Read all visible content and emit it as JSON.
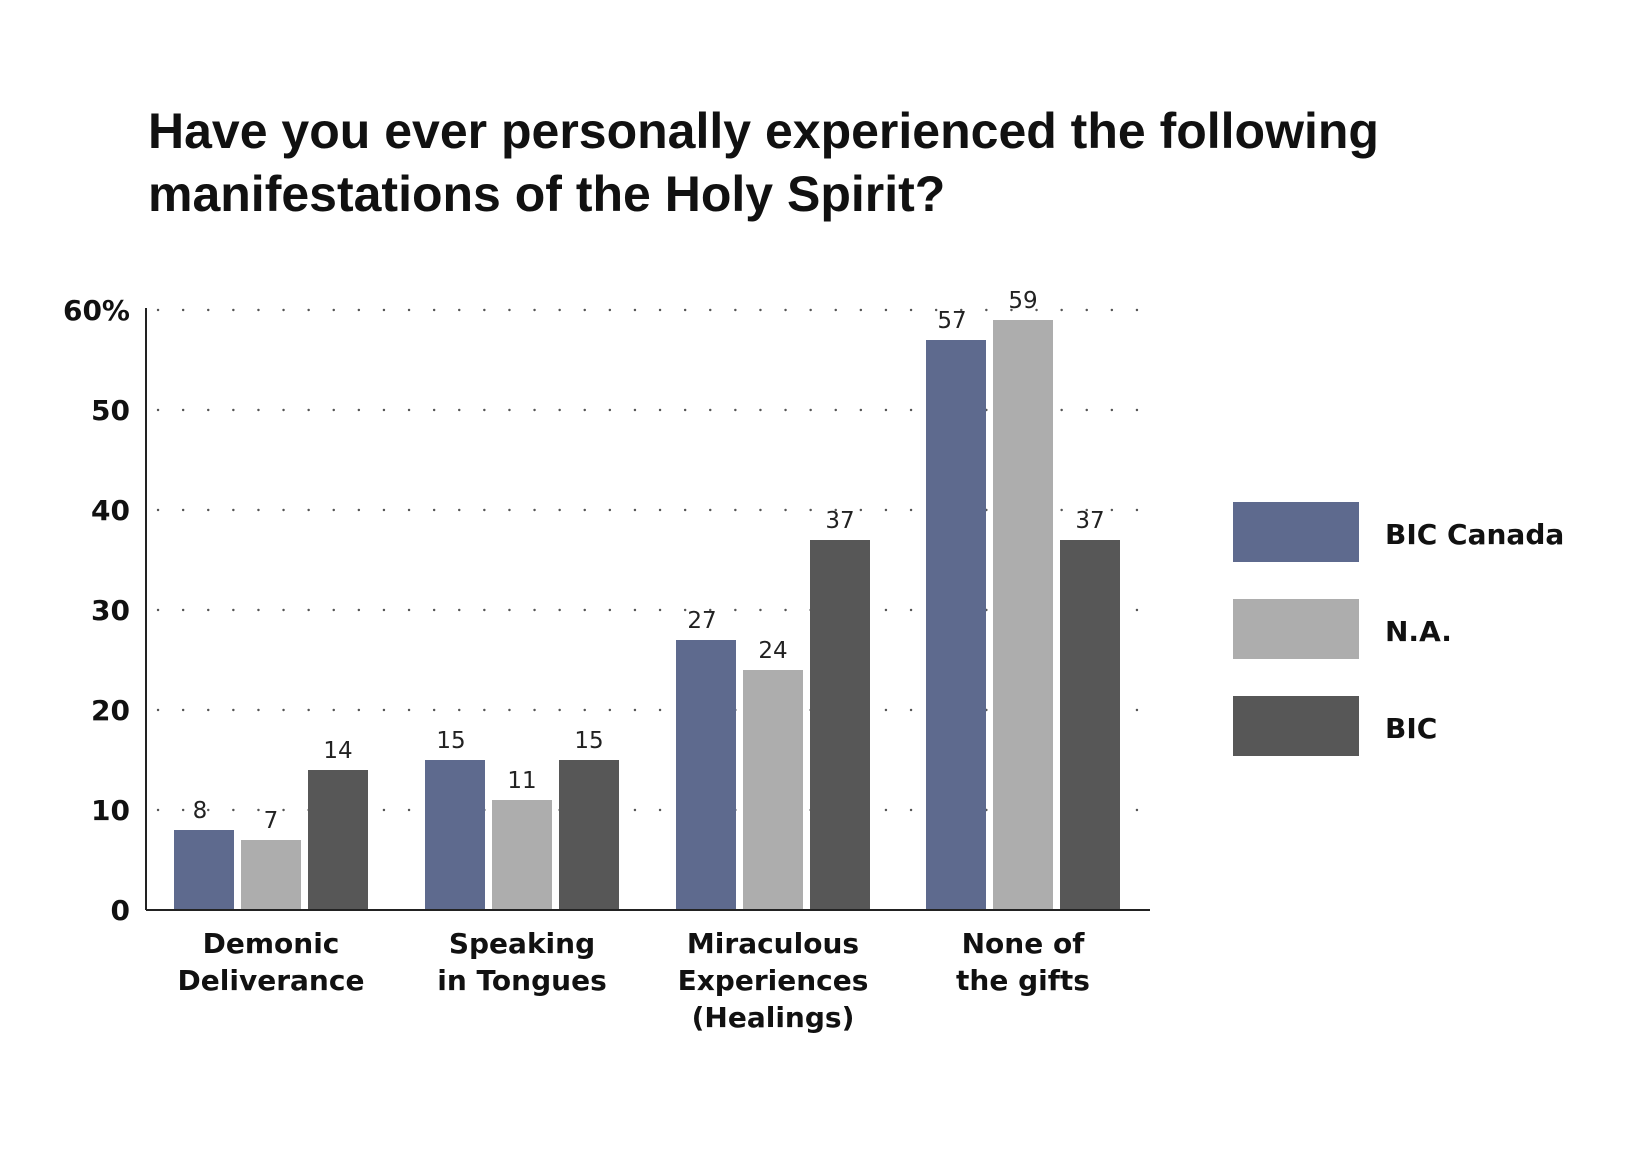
{
  "chart_data": {
    "type": "bar",
    "title": "Have you ever personally experienced the following manifestations of the Holy Spirit?",
    "title_lines": [
      "Have you ever personally experienced the following",
      "manifestations of the Holy Spirit?"
    ],
    "categories": [
      [
        "Demonic",
        "Deliverance"
      ],
      [
        "Speaking",
        "in Tongues"
      ],
      [
        "Miraculous",
        "Experiences",
        "(Healings)"
      ],
      [
        "None of",
        "the gifts"
      ]
    ],
    "series": [
      {
        "name": "BIC Canada",
        "color": "#5e6a8e",
        "values": [
          8,
          15,
          27,
          57
        ]
      },
      {
        "name": "N.A.",
        "color": "#adadad",
        "values": [
          7,
          11,
          24,
          59
        ]
      },
      {
        "name": "BIC",
        "color": "#575757",
        "values": [
          14,
          15,
          37,
          37
        ]
      }
    ],
    "yticks": [
      "0",
      "10",
      "20",
      "30",
      "40",
      "50",
      "60%"
    ],
    "ylim": [
      0,
      60
    ],
    "grid": "dotted horizontal",
    "legend_position": "right"
  }
}
